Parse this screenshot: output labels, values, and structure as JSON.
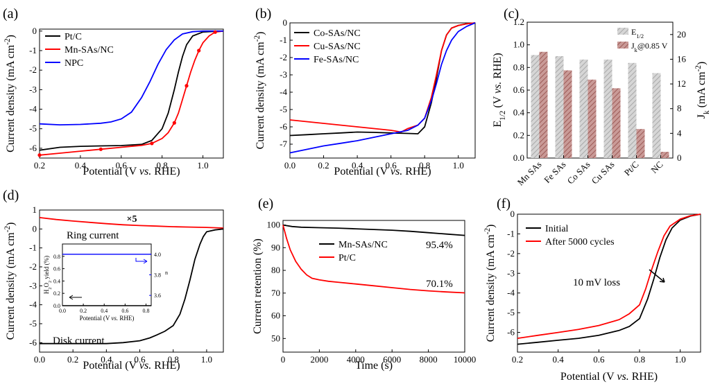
{
  "chart_data": [
    {
      "panel": "(a)",
      "type": "line",
      "xlabel": "Potential (V vs. RHE)",
      "ylabel": "Current density (mA cm-2)",
      "xlim": [
        0.2,
        1.1
      ],
      "ylim": [
        -6.5,
        0.1
      ],
      "xticks": [
        "0.2",
        "0.4",
        "0.6",
        "0.8",
        "1.0"
      ],
      "yticks": [
        "-6",
        "-5",
        "-4",
        "-3",
        "-2",
        "-1",
        "0"
      ],
      "legend": "top-left",
      "series": [
        {
          "name": "Pt/C",
          "color": "#000000",
          "x": [
            0.2,
            0.3,
            0.4,
            0.5,
            0.6,
            0.7,
            0.75,
            0.8,
            0.83,
            0.86,
            0.88,
            0.9,
            0.92,
            0.95,
            1.0,
            1.05,
            1.1
          ],
          "y": [
            -6.1,
            -5.95,
            -5.9,
            -5.88,
            -5.86,
            -5.8,
            -5.6,
            -5.0,
            -4.2,
            -3.0,
            -2.1,
            -1.3,
            -0.7,
            -0.25,
            -0.05,
            -0.02,
            0.0
          ]
        },
        {
          "name": "Mn-SAs/NC",
          "color": "#ff0000",
          "x": [
            0.2,
            0.3,
            0.4,
            0.5,
            0.6,
            0.7,
            0.75,
            0.8,
            0.83,
            0.86,
            0.88,
            0.9,
            0.92,
            0.94,
            0.96,
            0.98,
            1.0,
            1.03,
            1.06,
            1.1
          ],
          "y": [
            -6.35,
            -6.25,
            -6.15,
            -6.05,
            -5.95,
            -5.85,
            -5.75,
            -5.5,
            -5.2,
            -4.7,
            -4.2,
            -3.5,
            -2.8,
            -2.1,
            -1.5,
            -1.0,
            -0.6,
            -0.25,
            -0.05,
            0.0
          ]
        },
        {
          "name": "NPC",
          "color": "#0000ff",
          "x": [
            0.2,
            0.3,
            0.4,
            0.5,
            0.55,
            0.6,
            0.65,
            0.7,
            0.74,
            0.78,
            0.82,
            0.86,
            0.9,
            0.95,
            1.0,
            1.05,
            1.1
          ],
          "y": [
            -4.75,
            -4.8,
            -4.78,
            -4.72,
            -4.65,
            -4.5,
            -4.15,
            -3.4,
            -2.6,
            -1.7,
            -0.95,
            -0.45,
            -0.15,
            -0.03,
            0.0,
            0.0,
            0.0
          ]
        }
      ]
    },
    {
      "panel": "(b)",
      "type": "line",
      "xlabel": "Potential (V vs. RHE)",
      "ylabel": "Current density (mA cm-2)",
      "xlim": [
        0.0,
        1.1
      ],
      "ylim": [
        -7.8,
        0.0
      ],
      "xticks": [
        "0.0",
        "0.2",
        "0.4",
        "0.6",
        "0.8",
        "1.0"
      ],
      "yticks": [
        "-7",
        "-6",
        "-5",
        "-4",
        "-3",
        "-2",
        "-1",
        "0"
      ],
      "legend": "top-left",
      "series": [
        {
          "name": "Co-SAs/NC",
          "color": "#000000",
          "x": [
            0.0,
            0.1,
            0.2,
            0.3,
            0.4,
            0.5,
            0.6,
            0.7,
            0.76,
            0.8,
            0.84,
            0.87,
            0.9,
            0.93,
            0.96,
            1.0,
            1.05,
            1.1
          ],
          "y": [
            -6.5,
            -6.45,
            -6.4,
            -6.35,
            -6.3,
            -6.32,
            -6.35,
            -6.38,
            -6.4,
            -6.0,
            -4.6,
            -3.2,
            -1.6,
            -0.7,
            -0.3,
            -0.15,
            -0.05,
            0.0
          ]
        },
        {
          "name": "Cu-SAs/NC",
          "color": "#ff0000",
          "x": [
            0.0,
            0.1,
            0.2,
            0.3,
            0.4,
            0.5,
            0.6,
            0.66,
            0.7,
            0.76,
            0.8,
            0.84,
            0.87,
            0.9,
            0.93,
            0.96,
            1.0,
            1.05,
            1.1
          ],
          "y": [
            -5.6,
            -5.7,
            -5.8,
            -5.9,
            -6.0,
            -6.1,
            -6.2,
            -6.3,
            -6.1,
            -5.9,
            -5.5,
            -4.3,
            -3.0,
            -1.6,
            -0.7,
            -0.3,
            -0.15,
            -0.05,
            0.0
          ]
        },
        {
          "name": "Fe-SAs/NC",
          "color": "#0000ff",
          "x": [
            0.0,
            0.1,
            0.2,
            0.3,
            0.4,
            0.5,
            0.6,
            0.7,
            0.76,
            0.8,
            0.84,
            0.87,
            0.9,
            0.93,
            0.96,
            1.0,
            1.05,
            1.1
          ],
          "y": [
            -7.5,
            -7.3,
            -7.1,
            -6.95,
            -6.8,
            -6.6,
            -6.4,
            -6.2,
            -5.9,
            -5.5,
            -4.5,
            -3.5,
            -2.4,
            -1.6,
            -1.0,
            -0.5,
            -0.2,
            0.0
          ]
        }
      ]
    },
    {
      "panel": "(c)",
      "type": "bar",
      "categories": [
        "Mn SAs",
        "Fe SAs",
        "Co SAs",
        "Cu SAs",
        "Pt/C",
        "NC"
      ],
      "ylabel": "E1/2 (V vs. RHE)",
      "y2label": "Jk (mA cm-2)",
      "ylim": [
        0.0,
        1.2
      ],
      "y2lim": [
        0,
        22
      ],
      "yticks": [
        "0.0",
        "0.2",
        "0.4",
        "0.6",
        "0.8",
        "1.0",
        "1.2"
      ],
      "y2ticks": [
        "0",
        "4",
        "8",
        "12",
        "16",
        "20"
      ],
      "legend": "top-right",
      "series": [
        {
          "name": "E1/2",
          "axis": "left",
          "color": "#c8c8c8",
          "values": [
            0.91,
            0.9,
            0.87,
            0.87,
            0.84,
            0.75
          ]
        },
        {
          "name": "Jk@0.85 V",
          "axis": "right",
          "color": "#c08a86",
          "values": [
            17.2,
            14.2,
            12.7,
            11.3,
            4.7,
            1.0
          ]
        }
      ]
    },
    {
      "panel": "(d)",
      "type": "line",
      "xlabel": "Potential (V vs. RHE)",
      "ylabel": "Current density (mA cm-2)",
      "xlim": [
        0.0,
        1.1
      ],
      "ylim": [
        -6.5,
        1.0
      ],
      "xticks": [
        "0.0",
        "0.2",
        "0.4",
        "0.6",
        "0.8",
        "1.0"
      ],
      "yticks": [
        "-6",
        "-5",
        "-4",
        "-3",
        "-2",
        "-1",
        "0",
        "1"
      ],
      "annotations": [
        "×5",
        "Ring current",
        "Disk current"
      ],
      "series": [
        {
          "name": "Ring current",
          "color": "#ff0000",
          "x": [
            0.0,
            0.1,
            0.2,
            0.3,
            0.4,
            0.5,
            0.6,
            0.7,
            0.8,
            0.9,
            1.0,
            1.1
          ],
          "y": [
            0.6,
            0.5,
            0.42,
            0.35,
            0.28,
            0.22,
            0.18,
            0.15,
            0.12,
            0.1,
            0.08,
            0.05
          ]
        },
        {
          "name": "Disk current",
          "color": "#000000",
          "x": [
            0.0,
            0.2,
            0.4,
            0.5,
            0.6,
            0.66,
            0.7,
            0.75,
            0.8,
            0.84,
            0.87,
            0.9,
            0.93,
            0.96,
            0.98,
            1.0,
            1.05,
            1.1
          ],
          "y": [
            -6.05,
            -6.05,
            -6.05,
            -6.0,
            -5.9,
            -5.75,
            -5.6,
            -5.4,
            -5.1,
            -4.5,
            -3.7,
            -2.7,
            -1.6,
            -0.8,
            -0.4,
            -0.15,
            -0.05,
            0.0
          ]
        }
      ],
      "inset": {
        "xlabel": "Potential (V vs. RHE)",
        "ylabel": "H2O2 yield (%)",
        "y2label": "n",
        "xlim": [
          0.0,
          0.85
        ],
        "ylim": [
          0.0,
          1.0
        ],
        "y2lim": [
          3.5,
          4.1
        ],
        "xticks": [
          "0.0",
          "0.2",
          "0.4",
          "0.6",
          "0.8"
        ],
        "yticks": [
          "0.0",
          "0.2",
          "0.4",
          "0.6",
          "0.8"
        ],
        "y2ticks": [
          "3.6",
          "3.8",
          "4.0"
        ],
        "series": [
          {
            "name": "H2O2 yield",
            "axis": "left",
            "color": "#000000",
            "x": [
              0.0,
              0.85
            ],
            "y": [
              0.0,
              0.0
            ]
          },
          {
            "name": "n",
            "axis": "right",
            "color": "#0000ff",
            "x": [
              0.0,
              0.85
            ],
            "y": [
              4.0,
              4.0
            ]
          }
        ]
      }
    },
    {
      "panel": "(e)",
      "type": "line",
      "xlabel": "Time (s)",
      "ylabel": "Current retention (%)",
      "xlim": [
        0,
        10000
      ],
      "ylim": [
        44,
        102
      ],
      "xticks": [
        "0",
        "2000",
        "4000",
        "6000",
        "8000",
        "10000"
      ],
      "yticks": [
        "50",
        "60",
        "70",
        "80",
        "90",
        "100"
      ],
      "annotations": [
        "95.4%",
        "70.1%"
      ],
      "legend": "top-center",
      "series": [
        {
          "name": "Mn-SAs/NC",
          "color": "#000000",
          "x": [
            0,
            500,
            1000,
            2000,
            3000,
            4000,
            5000,
            6000,
            7000,
            8000,
            9000,
            10000
          ],
          "y": [
            100,
            99.3,
            99.0,
            98.8,
            98.6,
            98.3,
            98.0,
            97.7,
            97.2,
            96.6,
            96.0,
            95.4
          ]
        },
        {
          "name": "Pt/C",
          "color": "#ff0000",
          "x": [
            0,
            200,
            400,
            700,
            1000,
            1300,
            1600,
            2000,
            2500,
            3000,
            4000,
            5000,
            6000,
            7000,
            8000,
            9000,
            10000
          ],
          "y": [
            100,
            94,
            89,
            84,
            80.5,
            78,
            76.5,
            75.8,
            75.2,
            74.8,
            74.0,
            73.2,
            72.4,
            71.6,
            71.0,
            70.5,
            70.1
          ]
        }
      ]
    },
    {
      "panel": "(f)",
      "type": "line",
      "xlabel": "Potential (V vs. RHE)",
      "ylabel": "Current density (mA cm-2)",
      "xlim": [
        0.2,
        1.1
      ],
      "ylim": [
        -7.0,
        0.0
      ],
      "xticks": [
        "0.2",
        "0.4",
        "0.6",
        "0.8",
        "1.0"
      ],
      "yticks": [
        "-6",
        "-5",
        "-4",
        "-3",
        "-2",
        "-1",
        "0"
      ],
      "annotations": [
        "10 mV loss"
      ],
      "legend": "top-left",
      "series": [
        {
          "name": "Initial",
          "color": "#000000",
          "x": [
            0.2,
            0.3,
            0.4,
            0.5,
            0.6,
            0.7,
            0.75,
            0.8,
            0.84,
            0.87,
            0.9,
            0.93,
            0.96,
            1.0,
            1.05,
            1.1
          ],
          "y": [
            -6.6,
            -6.5,
            -6.4,
            -6.3,
            -6.15,
            -5.9,
            -5.7,
            -5.3,
            -4.3,
            -3.3,
            -2.2,
            -1.3,
            -0.7,
            -0.3,
            -0.1,
            0.0
          ]
        },
        {
          "name": "After 5000 cycles",
          "color": "#ff0000",
          "x": [
            0.2,
            0.3,
            0.4,
            0.5,
            0.6,
            0.7,
            0.75,
            0.8,
            0.83,
            0.86,
            0.89,
            0.92,
            0.95,
            1.0,
            1.05,
            1.1
          ],
          "y": [
            -6.3,
            -6.15,
            -6.0,
            -5.85,
            -5.65,
            -5.35,
            -5.05,
            -4.6,
            -3.8,
            -2.8,
            -1.9,
            -1.1,
            -0.6,
            -0.25,
            -0.08,
            0.0
          ]
        }
      ]
    }
  ]
}
